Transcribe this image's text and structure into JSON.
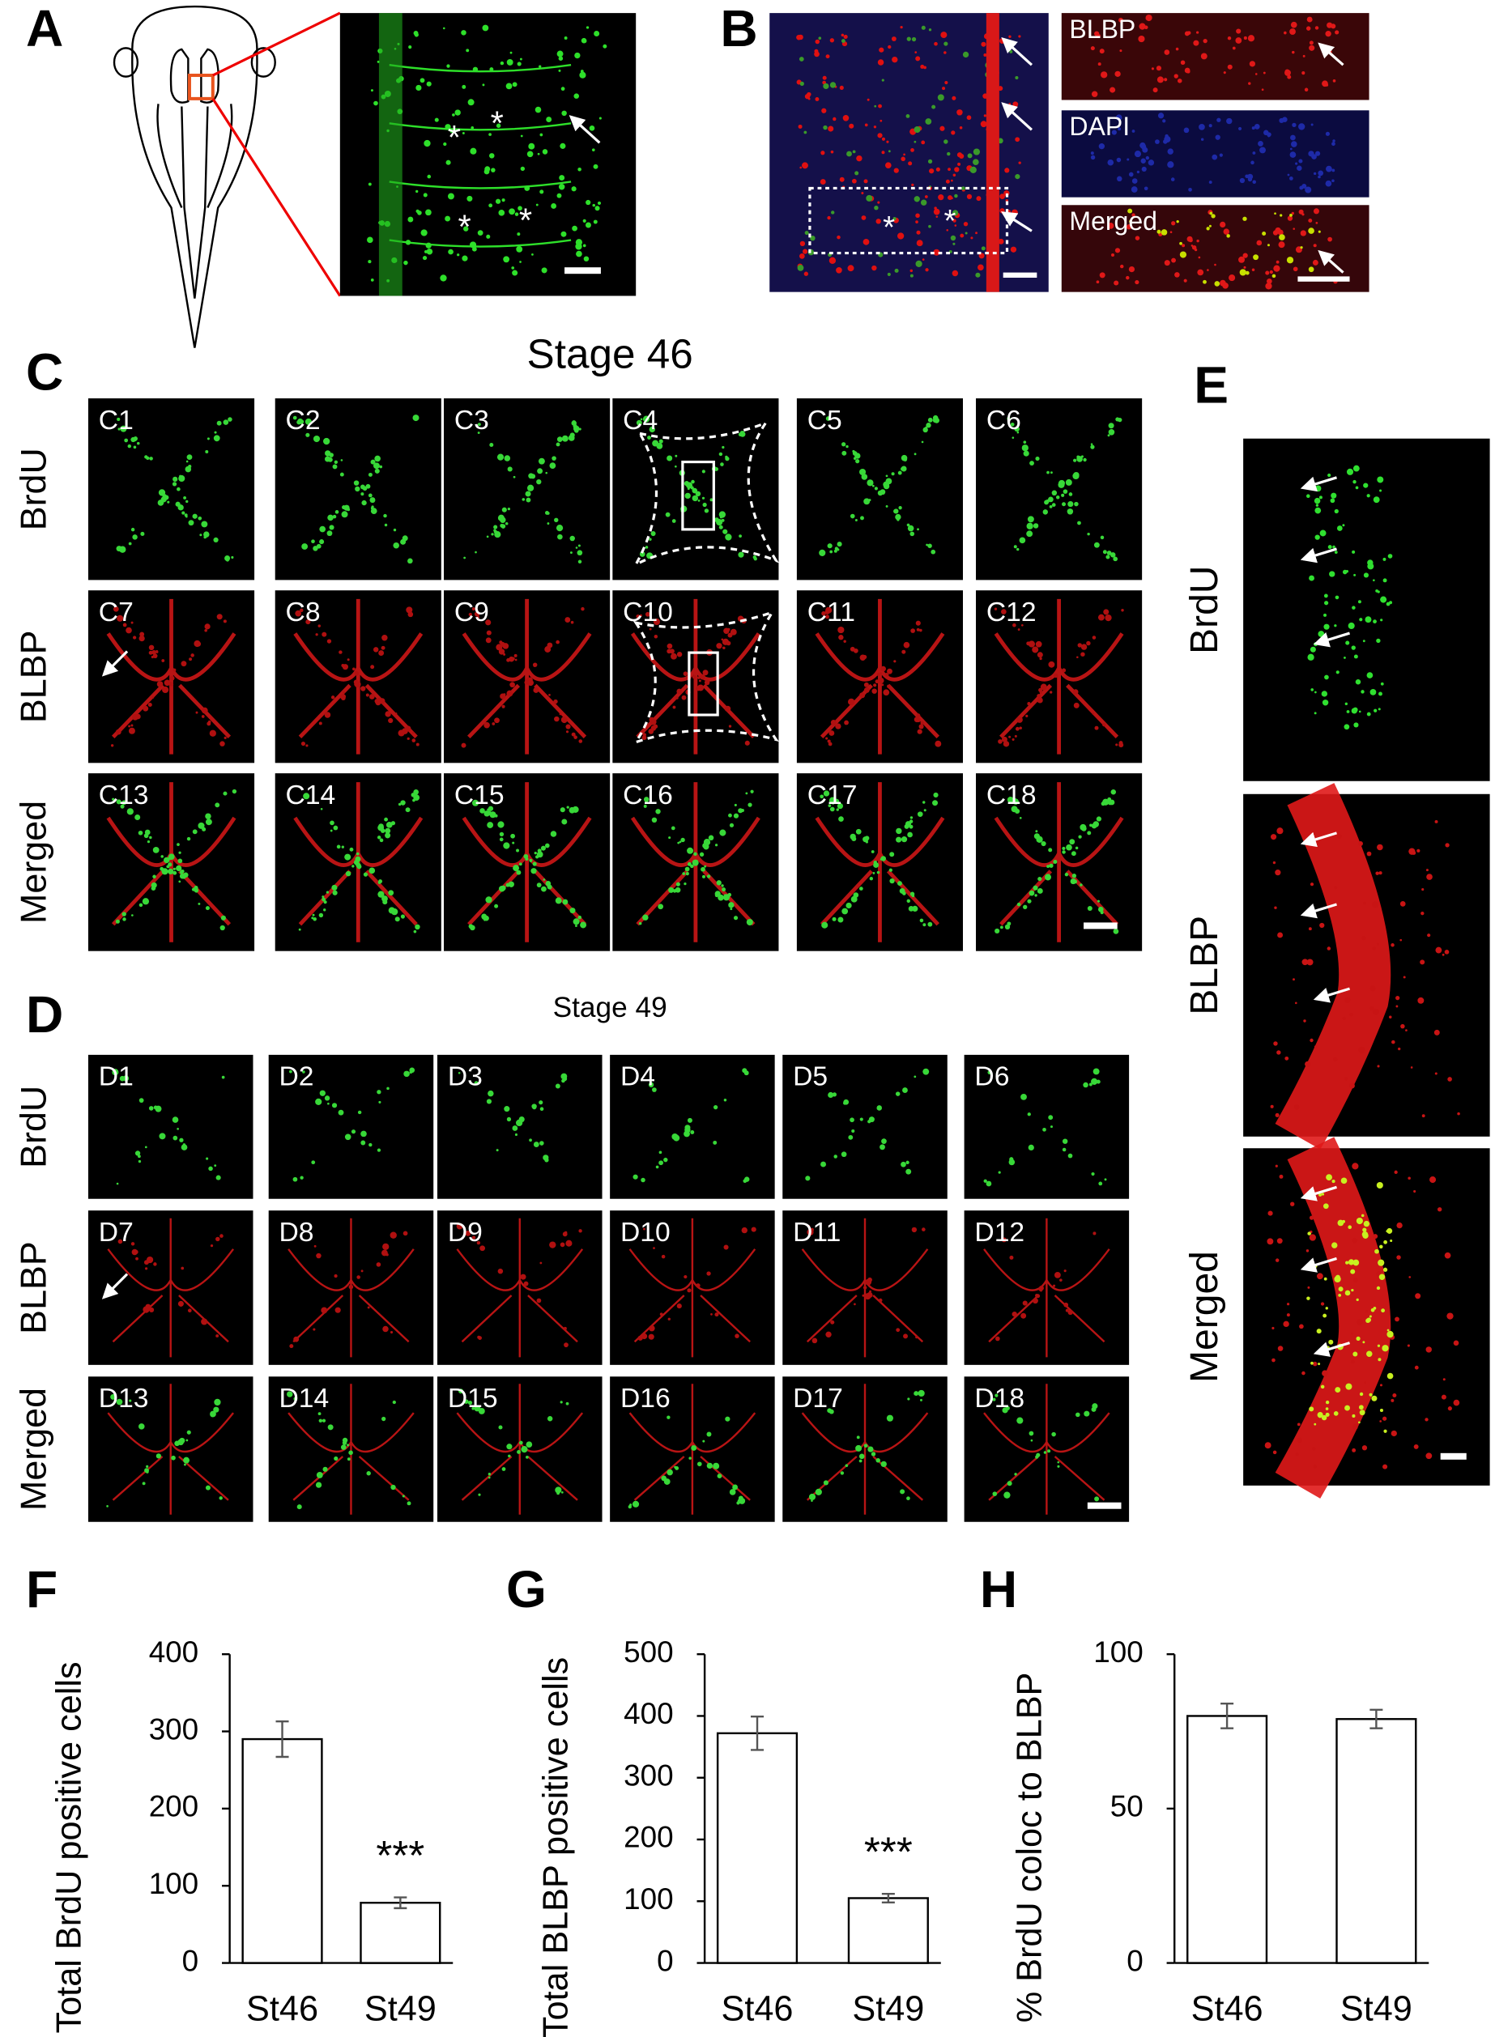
{
  "panel_labels": [
    "A",
    "B",
    "C",
    "D",
    "E",
    "F",
    "G",
    "H"
  ],
  "marker": "*",
  "B_channels": [
    "BLBP",
    "DAPI",
    "Merged"
  ],
  "C": {
    "title": "Stage 46",
    "rows": [
      "BrdU",
      "BLBP",
      "Merged"
    ],
    "tiles": [
      "C1",
      "C2",
      "C3",
      "C4",
      "C5",
      "C6",
      "C7",
      "C8",
      "C9",
      "C10",
      "C11",
      "C12",
      "C13",
      "C14",
      "C15",
      "C16",
      "C17",
      "C18"
    ]
  },
  "D": {
    "title": "Stage 49",
    "rows": [
      "BrdU",
      "BLBP",
      "Merged"
    ],
    "tiles": [
      "D1",
      "D2",
      "D3",
      "D4",
      "D5",
      "D6",
      "D7",
      "D8",
      "D9",
      "D10",
      "D11",
      "D12",
      "D13",
      "D14",
      "D15",
      "D16",
      "D17",
      "D18"
    ]
  },
  "E": {
    "rows": [
      "BrdU",
      "BLBP",
      "Merged"
    ]
  },
  "chart_data": [
    {
      "type": "bar",
      "y_label": "Total BrdU positive cells",
      "categories": [
        "St46",
        "St49"
      ],
      "values": [
        290,
        78
      ],
      "errors": [
        23,
        7
      ],
      "color": "#ffffff",
      "ylim": [
        0,
        400
      ],
      "yticks": [
        0,
        100,
        200,
        300,
        400
      ],
      "annotation": "***"
    },
    {
      "type": "bar",
      "y_label": "Total BLBP positive cells",
      "categories": [
        "St46",
        "St49"
      ],
      "values": [
        372,
        105
      ],
      "errors": [
        27,
        7
      ],
      "color": "#ffffff",
      "ylim": [
        0,
        500
      ],
      "yticks": [
        0,
        100,
        200,
        300,
        400,
        500
      ],
      "annotation": "***"
    },
    {
      "type": "bar",
      "y_label": "% BrdU coloc to BLBP",
      "categories": [
        "St46",
        "St49"
      ],
      "values": [
        80,
        79
      ],
      "errors": [
        4,
        3
      ],
      "color": "#ffffff",
      "ylim": [
        0,
        100
      ],
      "yticks": [
        0,
        50,
        100
      ]
    }
  ]
}
